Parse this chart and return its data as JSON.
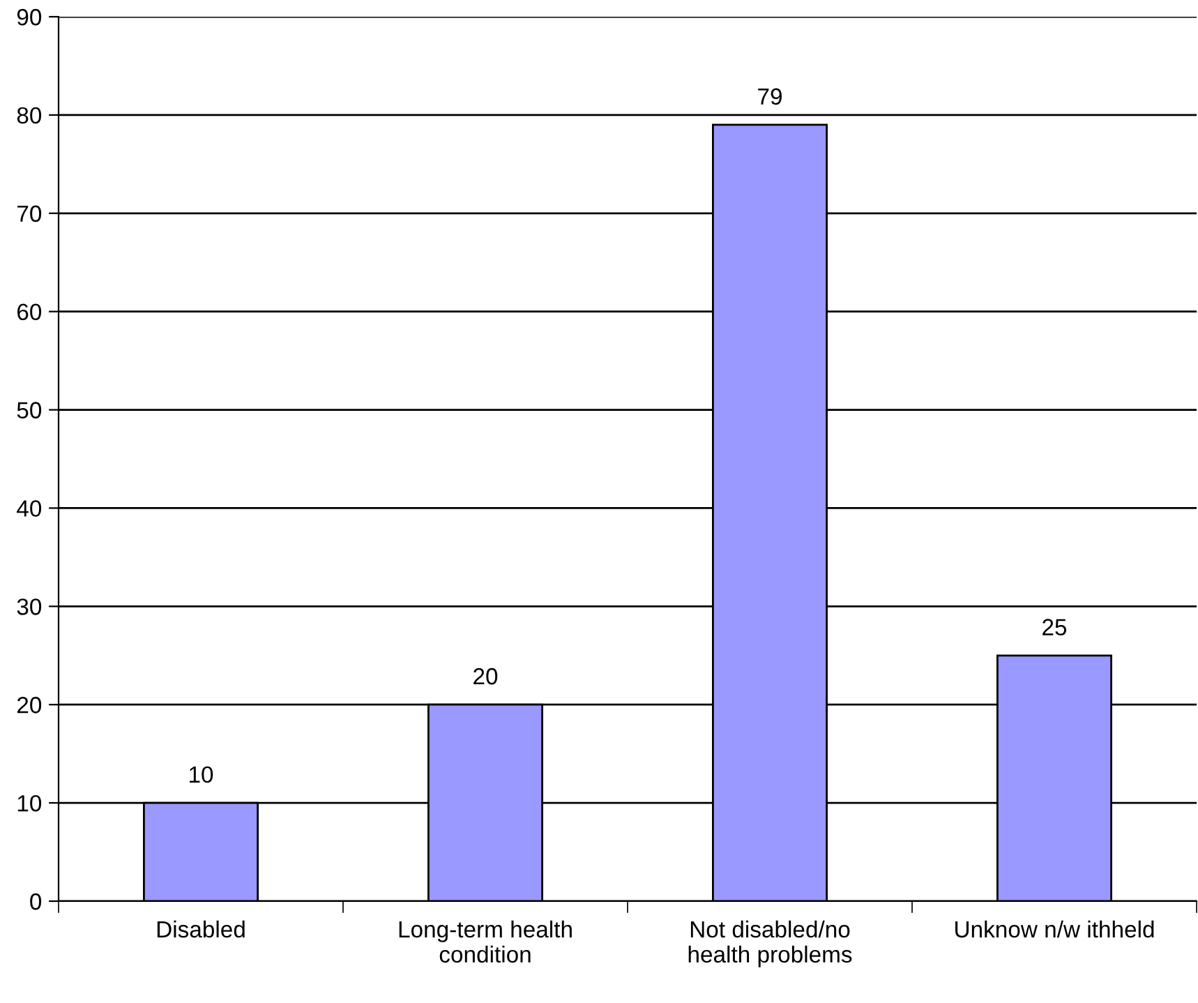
{
  "chart_data": {
    "type": "bar",
    "categories": [
      "Disabled",
      "Long-term health\ncondition",
      "Not disabled/no\nhealth problems",
      "Unknow n/w ithheld"
    ],
    "values": [
      10,
      20,
      79,
      25
    ],
    "color": "#9999ff",
    "ylim": [
      0,
      90
    ],
    "yticks": [
      0,
      10,
      20,
      30,
      40,
      50,
      60,
      70,
      80,
      90
    ],
    "grid": "y",
    "data_labels": true
  }
}
